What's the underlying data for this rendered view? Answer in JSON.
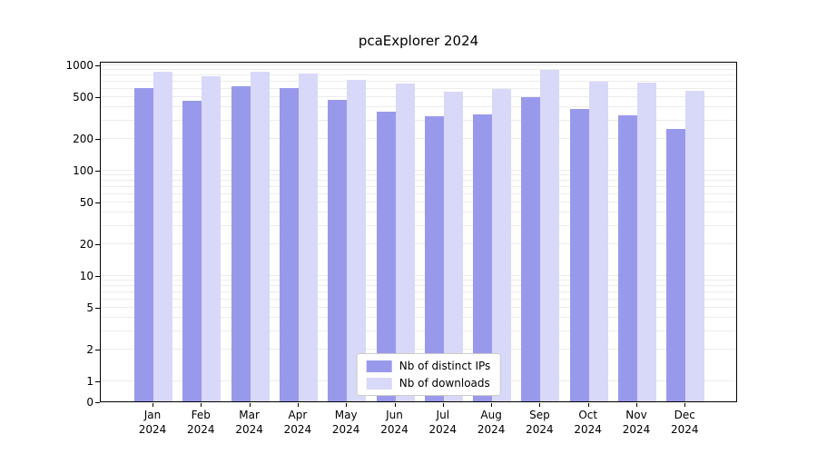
{
  "title": "pcaExplorer 2024",
  "chart_data": {
    "type": "bar",
    "title": "pcaExplorer 2024",
    "categories": [
      "Jan 2024",
      "Feb 2024",
      "Mar 2024",
      "Apr 2024",
      "May 2024",
      "Jun 2024",
      "Jul 2024",
      "Aug 2024",
      "Sep 2024",
      "Oct 2024",
      "Nov 2024",
      "Dec 2024"
    ],
    "series": [
      {
        "name": "Nb of distinct IPs",
        "color": "#9999ec",
        "values": [
          600,
          450,
          620,
          600,
          460,
          360,
          320,
          335,
          490,
          375,
          330,
          245
        ]
      },
      {
        "name": "Nb of downloads",
        "color": "#d8d8f8",
        "values": [
          860,
          780,
          860,
          820,
          720,
          660,
          550,
          580,
          880,
          690,
          670,
          560
        ]
      }
    ],
    "yscale": "symlog",
    "yticks": [
      1000,
      500,
      200,
      100,
      50,
      20,
      10,
      5,
      2,
      1,
      0
    ],
    "ylim": [
      0,
      1100
    ],
    "xlabel": "",
    "ylabel": "",
    "grid": true,
    "legend_position": "lower center",
    "colors": {
      "grid": "#ececec",
      "axis": "#000000",
      "background": "#ffffff"
    }
  }
}
